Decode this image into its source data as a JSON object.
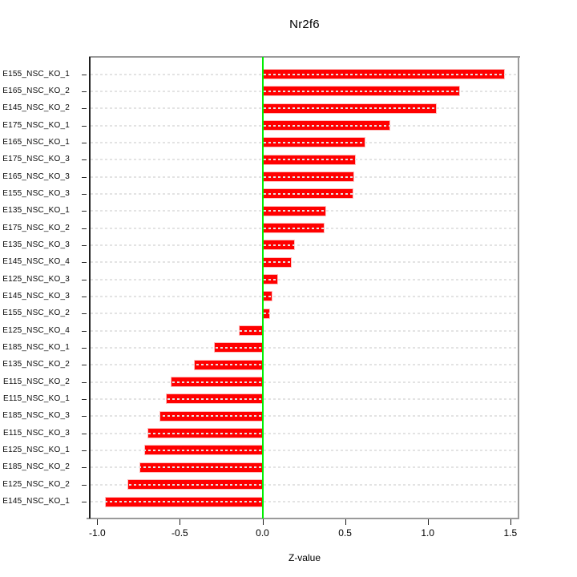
{
  "chart_data": {
    "type": "bar",
    "orientation": "horizontal",
    "title": "Nr2f6",
    "xlabel": "Z-value",
    "ylabel": "",
    "categories": [
      "E155_NSC_KO_1",
      "E165_NSC_KO_2",
      "E145_NSC_KO_2",
      "E175_NSC_KO_1",
      "E165_NSC_KO_1",
      "E175_NSC_KO_3",
      "E165_NSC_KO_3",
      "E155_NSC_KO_3",
      "E135_NSC_KO_1",
      "E175_NSC_KO_2",
      "E135_NSC_KO_3",
      "E145_NSC_KO_4",
      "E125_NSC_KO_3",
      "E145_NSC_KO_3",
      "E155_NSC_KO_2",
      "E125_NSC_KO_4",
      "E185_NSC_KO_1",
      "E135_NSC_KO_2",
      "E115_NSC_KO_2",
      "E115_NSC_KO_1",
      "E185_NSC_KO_3",
      "E115_NSC_KO_3",
      "E125_NSC_KO_1",
      "E185_NSC_KO_2",
      "E125_NSC_KO_2",
      "E145_NSC_KO_1"
    ],
    "values": [
      1.46,
      1.19,
      1.05,
      0.77,
      0.62,
      0.56,
      0.55,
      0.545,
      0.38,
      0.37,
      0.19,
      0.17,
      0.09,
      0.055,
      0.04,
      -0.14,
      -0.29,
      -0.41,
      -0.55,
      -0.58,
      -0.62,
      -0.69,
      -0.71,
      -0.74,
      -0.81,
      -0.95
    ],
    "x_ticks": [
      -1.0,
      -0.5,
      0.0,
      0.5,
      1.0,
      1.5
    ],
    "x_tick_labels": [
      "-1.0",
      "-0.5",
      "0.0",
      "0.5",
      "1.0",
      "1.5"
    ],
    "xlim": [
      -1.05,
      1.55
    ],
    "grid": true,
    "legend_position": "none",
    "bar_color": "#ff0000",
    "zero_line_color": "#00ee00",
    "box_color": "#9a9a9a",
    "grid_color": "#e3e3e3"
  }
}
